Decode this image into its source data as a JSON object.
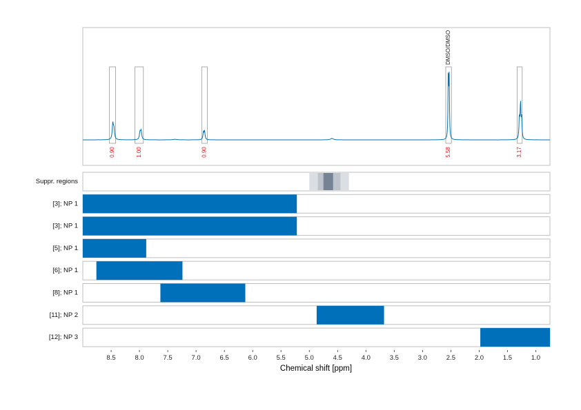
{
  "chart_data": {
    "type": "nmr-spectrum-with-bar-tracks",
    "xlabel": "Chemical shift [ppm]",
    "x_range_ppm": [
      9.0,
      0.75
    ],
    "x_reversed": true,
    "grid": "vertical dashed",
    "ticks": [
      {
        "v": 8.5,
        "label": "8.5"
      },
      {
        "v": 8.0,
        "label": "8.0"
      },
      {
        "v": 7.5,
        "label": "7.5"
      },
      {
        "v": 7.0,
        "label": "7.0"
      },
      {
        "v": 6.5,
        "label": "6.5"
      },
      {
        "v": 6.0,
        "label": "6.0"
      },
      {
        "v": 5.5,
        "label": "5.5"
      },
      {
        "v": 5.0,
        "label": "5.0"
      },
      {
        "v": 4.5,
        "label": "4.5"
      },
      {
        "v": 4.0,
        "label": "4.0"
      },
      {
        "v": 3.5,
        "label": "3.5"
      },
      {
        "v": 3.0,
        "label": "3.0"
      },
      {
        "v": 2.5,
        "label": "2.5"
      },
      {
        "v": 2.0,
        "label": "2.0"
      },
      {
        "v": 1.5,
        "label": "1.5"
      },
      {
        "v": 1.0,
        "label": "1.0"
      }
    ],
    "spectrum": {
      "color": "#0072b5",
      "peaks": [
        {
          "ppm": 8.47,
          "height": 0.22,
          "width": 0.012
        },
        {
          "ppm": 8.45,
          "height": 0.14,
          "width": 0.012
        },
        {
          "ppm": 7.99,
          "height": 0.1,
          "width": 0.012
        },
        {
          "ppm": 7.97,
          "height": 0.12,
          "width": 0.012
        },
        {
          "ppm": 6.87,
          "height": 0.1,
          "width": 0.01
        },
        {
          "ppm": 6.85,
          "height": 0.12,
          "width": 0.01
        },
        {
          "ppm": 4.6,
          "height": 0.02,
          "width": 0.03
        },
        {
          "ppm": 2.545,
          "height": 1.0,
          "width": 0.006
        },
        {
          "ppm": 2.53,
          "height": 0.85,
          "width": 0.006
        },
        {
          "ppm": 1.29,
          "height": 0.3,
          "width": 0.008
        },
        {
          "ppm": 1.27,
          "height": 0.5,
          "width": 0.008
        },
        {
          "ppm": 1.25,
          "height": 0.28,
          "width": 0.008
        },
        {
          "ppm": 7.37,
          "height": 0.008,
          "width": 0.04
        }
      ]
    },
    "integration_regions": [
      {
        "from": 8.53,
        "to": 8.42,
        "label": "0.90"
      },
      {
        "from": 8.08,
        "to": 7.93,
        "label": "1.00"
      },
      {
        "from": 6.9,
        "to": 6.8,
        "label": "0.90"
      },
      {
        "from": 2.59,
        "to": 2.49,
        "label": "5.58",
        "annotation": "DMSO/DMSO"
      },
      {
        "from": 1.33,
        "to": 1.24,
        "label": "3.17"
      }
    ],
    "label_color": "#e8141c",
    "suppression_regions": {
      "label": "Suppr. regions",
      "bands": [
        {
          "from": 5.0,
          "to": 4.3,
          "opacity": 0.18
        },
        {
          "from": 4.85,
          "to": 4.45,
          "opacity": 0.18
        },
        {
          "from": 4.75,
          "to": 4.58,
          "opacity": 0.55
        }
      ]
    },
    "bar_color": "#0070bb",
    "bars": [
      {
        "label": "[3]; NP 1",
        "from": 9.0,
        "to": 5.22
      },
      {
        "label": "[3]; NP 1",
        "from": 9.0,
        "to": 5.22
      },
      {
        "label": "[5]; NP 1",
        "from": 9.0,
        "to": 7.88
      },
      {
        "label": "[6]; NP 1",
        "from": 8.76,
        "to": 7.24
      },
      {
        "label": "[8]; NP 1",
        "from": 7.63,
        "to": 6.13
      },
      {
        "label": "[11]; NP 2",
        "from": 4.87,
        "to": 3.68
      },
      {
        "label": "[12]; NP 3",
        "from": 1.98,
        "to": 0.75
      }
    ]
  }
}
